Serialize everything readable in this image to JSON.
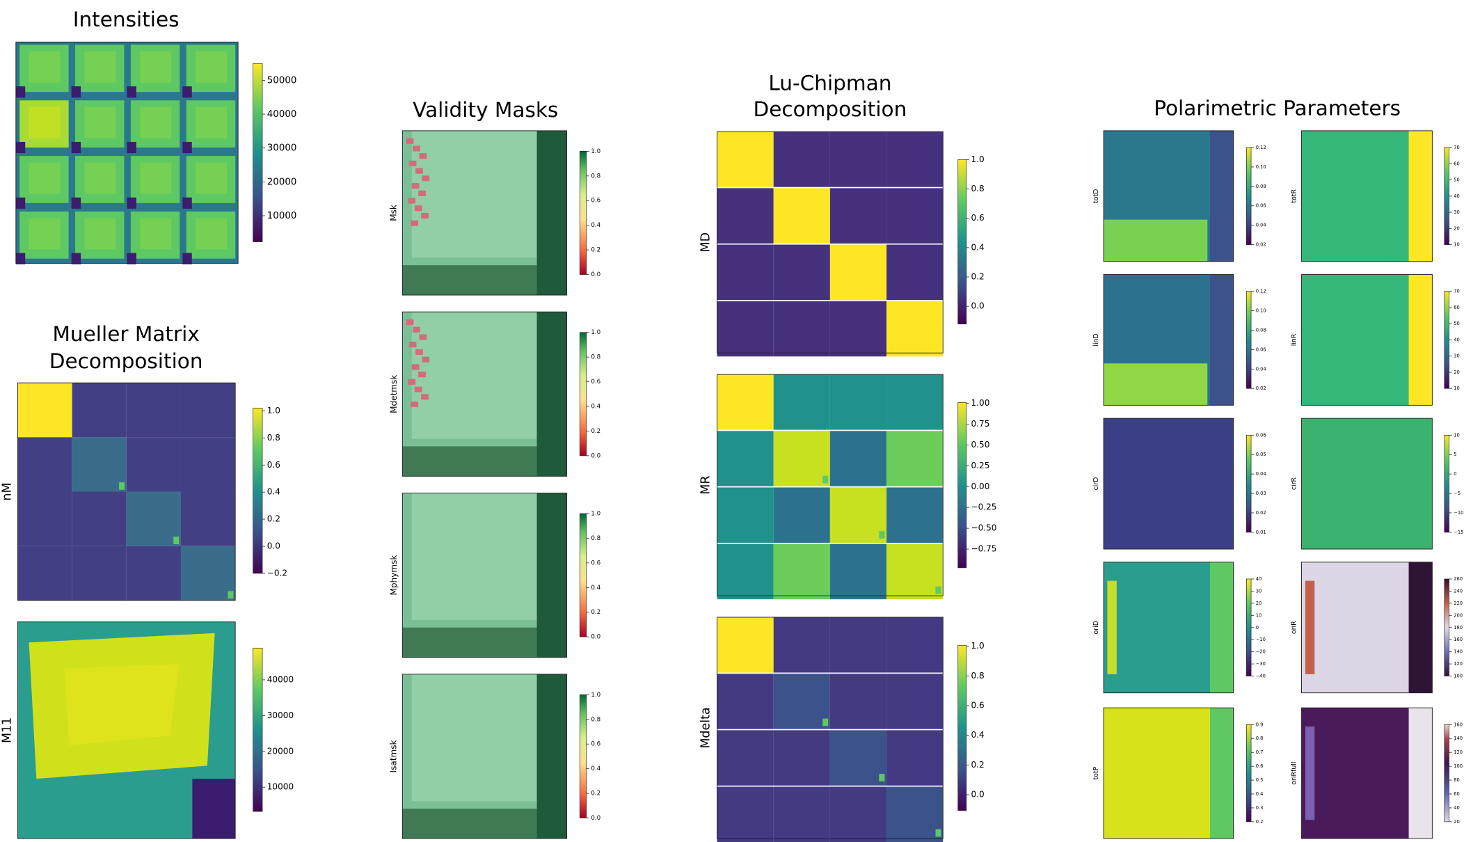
{
  "sections": [
    {
      "title": "Intensities",
      "panels": [
        {
          "colorbar_ticks": [
            "50000",
            "40000",
            "30000",
            "20000",
            "10000"
          ]
        }
      ]
    },
    {
      "title": [
        "Mueller Matrix",
        "Decomposition"
      ],
      "panels": [
        {
          "label": "nM",
          "colorbar_ticks": [
            "1.0",
            "0.8",
            "0.6",
            "0.4",
            "0.2",
            "0.0",
            "−0.2"
          ]
        },
        {
          "label": "M11",
          "colorbar_ticks": [
            "40000",
            "30000",
            "20000",
            "10000"
          ]
        }
      ]
    },
    {
      "title": "Validity Masks",
      "panels": [
        {
          "label": "Msk",
          "colorbar_ticks": [
            "1.0",
            "0.8",
            "0.6",
            "0.4",
            "0.2",
            "0.0"
          ]
        },
        {
          "label": "Mdetmsk",
          "colorbar_ticks": [
            "1.0",
            "0.8",
            "0.6",
            "0.4",
            "0.2",
            "0.0"
          ]
        },
        {
          "label": "Mphymsk",
          "colorbar_ticks": [
            "1.0",
            "0.8",
            "0.6",
            "0.4",
            "0.2",
            "0.0"
          ]
        },
        {
          "label": "Isatmsk",
          "colorbar_ticks": [
            "1.0",
            "0.8",
            "0.6",
            "0.4",
            "0.2",
            "0.0"
          ]
        }
      ]
    },
    {
      "title": [
        "Lu-Chipman",
        "Decomposition"
      ],
      "panels": [
        {
          "label": "MD",
          "colorbar_ticks": [
            "1.0",
            "0.8",
            "0.6",
            "0.4",
            "0.2",
            "0.0"
          ]
        },
        {
          "label": "MR",
          "colorbar_ticks": [
            "1.00",
            "0.75",
            "0.50",
            "0.25",
            "0.00",
            "−0.25",
            "−0.50",
            "−0.75"
          ]
        },
        {
          "label": "Mdelta",
          "colorbar_ticks": [
            "1.0",
            "0.8",
            "0.6",
            "0.4",
            "0.2",
            "0.0"
          ]
        }
      ]
    },
    {
      "title": "Polarimetric Parameters",
      "panels": [
        {
          "label": "totD",
          "colorbar_ticks": [
            "0.12",
            "0.10",
            "0.08",
            "0.06",
            "0.04",
            "0.02"
          ]
        },
        {
          "label": "totR",
          "colorbar_ticks": [
            "70",
            "60",
            "50",
            "40",
            "30",
            "20",
            "10"
          ]
        },
        {
          "label": "linD",
          "colorbar_ticks": [
            "0.12",
            "0.10",
            "0.08",
            "0.06",
            "0.04",
            "0.02"
          ]
        },
        {
          "label": "linR",
          "colorbar_ticks": [
            "70",
            "60",
            "50",
            "40",
            "30",
            "20",
            "10"
          ]
        },
        {
          "label": "cirD",
          "colorbar_ticks": [
            "0.06",
            "0.05",
            "0.04",
            "0.03",
            "0.02",
            "0.01"
          ]
        },
        {
          "label": "cirR",
          "colorbar_ticks": [
            "10",
            "5",
            "0",
            "−5",
            "−10",
            "−15"
          ]
        },
        {
          "label": "oriD",
          "colorbar_ticks": [
            "40",
            "30",
            "20",
            "10",
            "0",
            "−10",
            "−20",
            "−30",
            "−40"
          ]
        },
        {
          "label": "oriR",
          "colorbar_ticks": [
            "260",
            "240",
            "220",
            "200",
            "180",
            "160",
            "140",
            "120",
            "100"
          ]
        },
        {
          "label": "totP",
          "colorbar_ticks": [
            "0.9",
            "0.8",
            "0.7",
            "0.6",
            "0.5",
            "0.4",
            "0.3",
            "0.2"
          ]
        },
        {
          "label": "oriRfull",
          "colorbar_ticks": [
            "160",
            "140",
            "120",
            "100",
            "80",
            "60",
            "40",
            "20"
          ]
        }
      ]
    }
  ]
}
